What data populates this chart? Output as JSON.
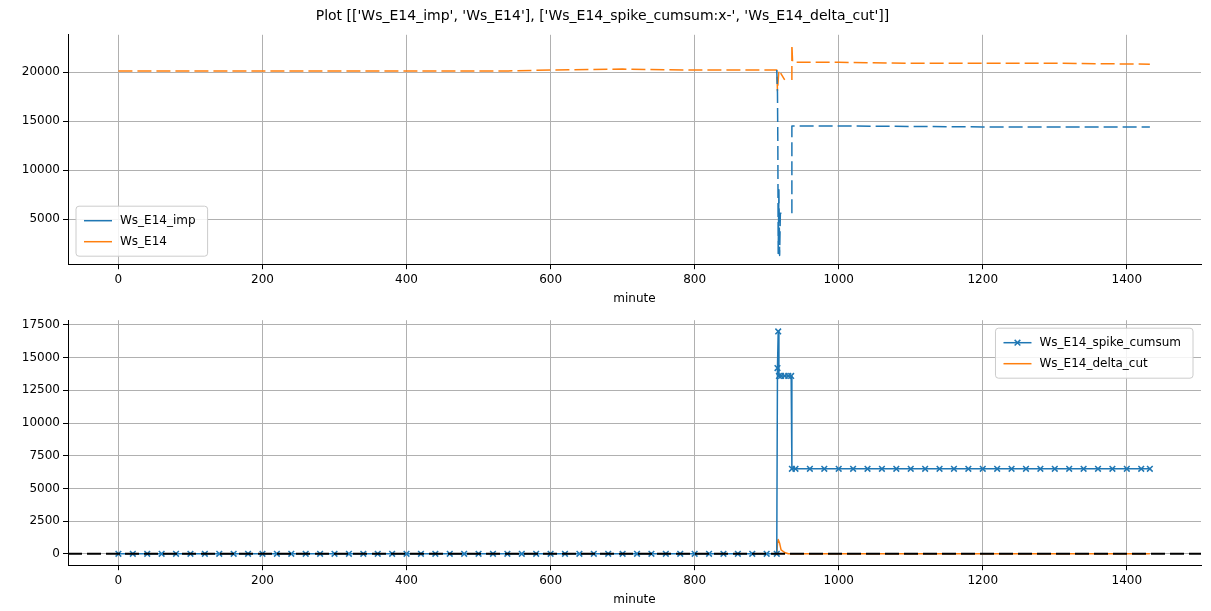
{
  "chart_data": [
    {
      "type": "line",
      "title": "Plot [['Ws_E14_imp', 'Ws_E14'], ['Ws_E14_spike_cumsum:x-', 'Ws_E14_delta_cut']]",
      "xlabel": "minute",
      "xlim": [
        -70,
        1503
      ],
      "ylim": [
        400,
        23800
      ],
      "xticks": [
        0,
        200,
        400,
        600,
        800,
        1000,
        1200,
        1400
      ],
      "yticks": [
        5000,
        10000,
        15000,
        20000
      ],
      "grid": true,
      "legend": "bottom left",
      "line_style": "dashed",
      "marker": "none",
      "series": [
        {
          "name": "Ws_E14_imp",
          "color": "#1f77b4",
          "x": [
            914,
            915,
            915.5,
            916,
            917,
            918,
            919,
            925,
            930,
            935,
            935,
            1000,
            1200,
            1432
          ],
          "values": [
            20200,
            17900,
            12800,
            1500,
            8000,
            1300,
            5600,
            5600,
            null,
            5600,
            14500,
            14500,
            14400,
            14400
          ]
        },
        {
          "name": "Ws_E14",
          "color": "#ff7f0e",
          "x": [
            0,
            100,
            200,
            300,
            400,
            500,
            530,
            600,
            700,
            800,
            870,
            910,
            914,
            915,
            917,
            925,
            930,
            935,
            935,
            936,
            1000,
            1100,
            1200,
            1300,
            1432
          ],
          "values": [
            20100,
            20100,
            20100,
            20100,
            20100,
            20100,
            20100,
            20200,
            20300,
            20200,
            20200,
            20200,
            20200,
            18100,
            20200,
            19200,
            null,
            19200,
            22800,
            21000,
            21000,
            20900,
            20900,
            20900,
            20800
          ]
        }
      ]
    },
    {
      "type": "line",
      "xlabel": "minute",
      "xlim": [
        -70,
        1503
      ],
      "ylim": [
        -870,
        17860
      ],
      "xticks": [
        0,
        200,
        400,
        600,
        800,
        1000,
        1200,
        1400
      ],
      "yticks": [
        0,
        2500,
        5000,
        7500,
        10000,
        12500,
        15000,
        17500
      ],
      "grid": true,
      "legend": "top right",
      "ref_lines": [
        {
          "axis": "y",
          "value": 0,
          "color": "#000000",
          "line_style": "dashed"
        }
      ],
      "series": [
        {
          "name": "Ws_E14_spike_cumsum",
          "color": "#1f77b4",
          "marker": "cross",
          "line_style": "solid",
          "x": [
            0,
            20,
            40,
            60,
            80,
            100,
            120,
            140,
            160,
            180,
            200,
            220,
            240,
            260,
            280,
            300,
            320,
            340,
            360,
            380,
            400,
            420,
            440,
            460,
            480,
            500,
            520,
            540,
            560,
            580,
            600,
            620,
            640,
            660,
            680,
            700,
            720,
            740,
            760,
            780,
            800,
            820,
            840,
            860,
            880,
            900,
            914,
            915,
            916,
            917,
            920,
            925,
            930,
            934,
            935,
            940,
            960,
            980,
            1000,
            1020,
            1040,
            1060,
            1080,
            1100,
            1120,
            1140,
            1160,
            1180,
            1200,
            1220,
            1240,
            1260,
            1280,
            1300,
            1320,
            1340,
            1360,
            1380,
            1400,
            1420,
            1432
          ],
          "values": [
            0,
            0,
            0,
            0,
            0,
            0,
            0,
            0,
            0,
            0,
            0,
            0,
            0,
            0,
            0,
            0,
            0,
            0,
            0,
            0,
            0,
            0,
            0,
            0,
            0,
            0,
            0,
            0,
            0,
            0,
            0,
            0,
            0,
            0,
            0,
            0,
            0,
            0,
            0,
            0,
            0,
            0,
            0,
            0,
            0,
            0,
            0,
            14200,
            17000,
            13600,
            13600,
            13600,
            13600,
            13600,
            6500,
            6500,
            6500,
            6500,
            6500,
            6500,
            6500,
            6500,
            6500,
            6500,
            6500,
            6500,
            6500,
            6500,
            6500,
            6500,
            6500,
            6500,
            6500,
            6500,
            6500,
            6500,
            6500,
            6500,
            6500,
            6500,
            6500
          ]
        },
        {
          "name": "Ws_E14_delta_cut",
          "color": "#ff7f0e",
          "marker": "none",
          "line_style": "solid",
          "x": [
            914,
            915,
            916,
            918,
            920,
            925,
            930,
            1000,
            1432
          ],
          "values": [
            0,
            800,
            1100,
            800,
            300,
            100,
            0,
            0,
            0
          ]
        }
      ]
    }
  ]
}
